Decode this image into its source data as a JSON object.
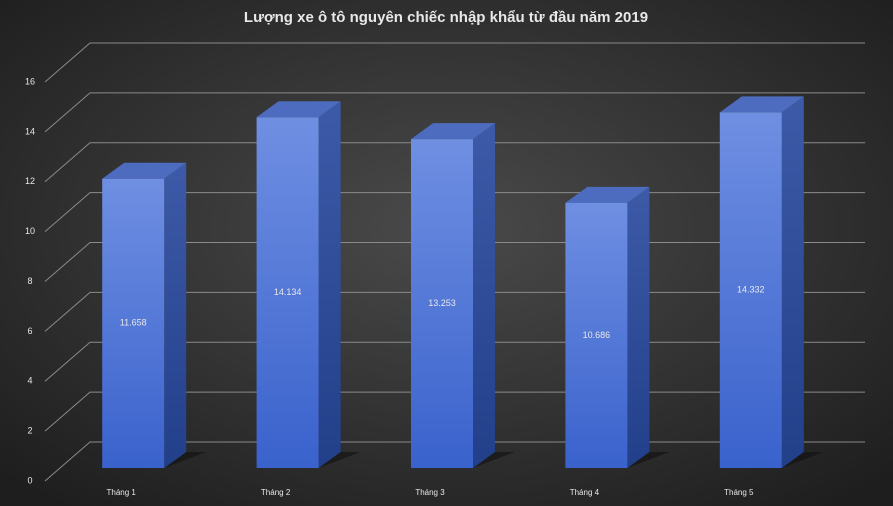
{
  "chart_data": {
    "type": "bar3d",
    "title": "Lượng xe ô tô nguyên chiếc nhập khẩu từ đầu năm 2019",
    "categories": [
      "Tháng 1",
      "Tháng 2",
      "Tháng 3",
      "Tháng 4",
      "Tháng 5"
    ],
    "values": [
      11.658,
      14.134,
      13.253,
      10.686,
      14.332
    ],
    "color": "#4a72d8",
    "ylim": [
      0,
      16
    ],
    "yticks": [
      0,
      2,
      4,
      6,
      8,
      10,
      12,
      14,
      16
    ],
    "grid": true
  }
}
